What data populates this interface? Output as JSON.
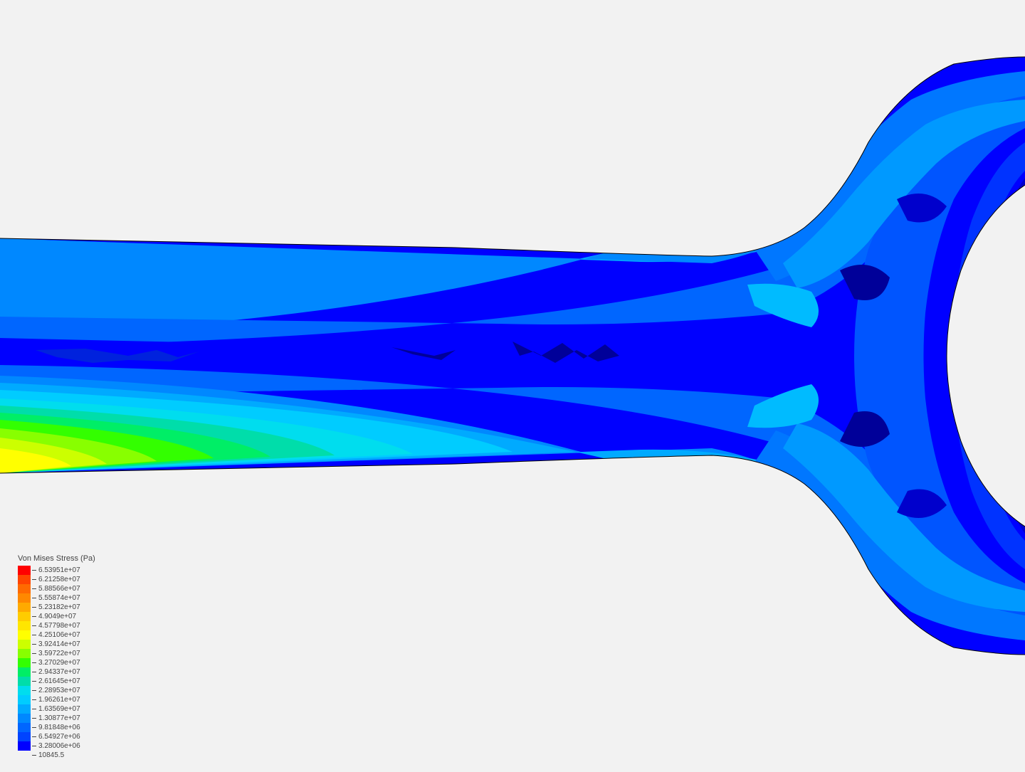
{
  "legend": {
    "title": "Von Mises Stress (Pa)",
    "values": [
      "6.53951e+07",
      "6.21258e+07",
      "5.88566e+07",
      "5.55874e+07",
      "5.23182e+07",
      "4.9049e+07",
      "4.57798e+07",
      "4.25106e+07",
      "3.92414e+07",
      "3.59722e+07",
      "3.27029e+07",
      "2.94337e+07",
      "2.61645e+07",
      "2.28953e+07",
      "1.96261e+07",
      "1.63569e+07",
      "1.30877e+07",
      "9.81848e+06",
      "6.54927e+06",
      "3.28006e+06",
      "10845.5"
    ],
    "colors": [
      "#ff0000",
      "#ff4400",
      "#ff6a00",
      "#ff8800",
      "#ffaa00",
      "#ffcc00",
      "#ffe600",
      "#ffff00",
      "#ccff00",
      "#88ff00",
      "#33ff00",
      "#00ee66",
      "#00ddaa",
      "#00ddee",
      "#00ccff",
      "#00aaff",
      "#0088ff",
      "#0066ff",
      "#0044ff",
      "#0000ff"
    ]
  },
  "contour": {
    "background_color": "#f2f2f2",
    "outline_color": "#000000",
    "stress_bands": {
      "darkblue": "#0000ff",
      "blue1": "#0033ff",
      "blue2": "#0055ff",
      "blue3": "#0077ff",
      "skyblue": "#0099ff",
      "cyan1": "#00bbff",
      "cyan2": "#00ddee",
      "cyan3": "#00ddaa",
      "green1": "#00ee66",
      "green2": "#33ff00",
      "green3": "#88ff00",
      "yellowgreen": "#ccff00",
      "yellow": "#ffff00"
    }
  }
}
